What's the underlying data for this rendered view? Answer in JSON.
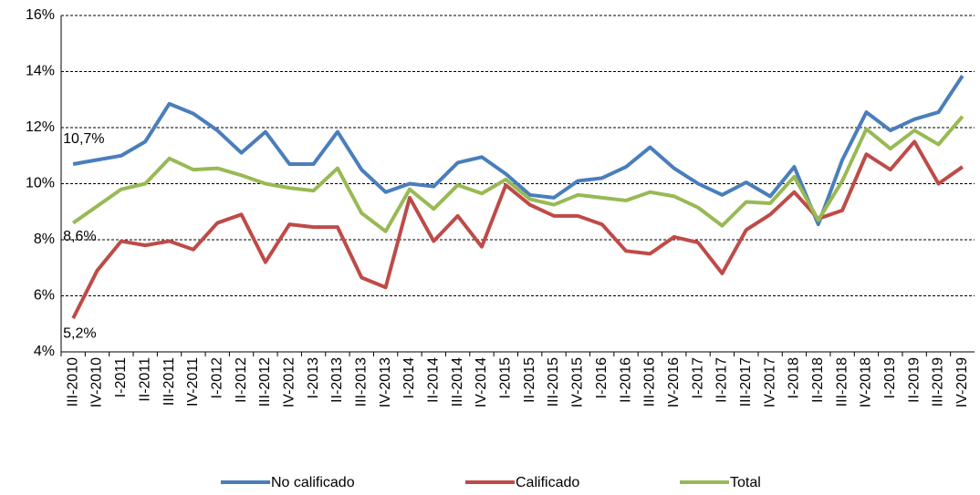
{
  "chart_data": {
    "type": "line",
    "categories": [
      "III-2010",
      "IV-2010",
      "I-2011",
      "II-2011",
      "III-2011",
      "IV-2011",
      "I-2012",
      "II-2012",
      "III-2012",
      "IV-2012",
      "I-2013",
      "II-2013",
      "III-2013",
      "IV-2013",
      "I-2014",
      "II-2014",
      "III-2014",
      "IV-2014",
      "I-2015",
      "II-2015",
      "III-2015",
      "IV-2015",
      "I-2016",
      "II-2016",
      "III-2016",
      "IV-2016",
      "I-2017",
      "II-2017",
      "III-2017",
      "IV-2017",
      "I-2018",
      "II-2018",
      "III-2018",
      "IV-2018",
      "I-2019",
      "II-2019",
      "III-2019",
      "IV-2019"
    ],
    "series": [
      {
        "name": "No calificado",
        "color": "#4a7ebb",
        "values": [
          10.7,
          10.85,
          11.0,
          11.5,
          12.85,
          12.5,
          11.9,
          11.1,
          11.85,
          10.7,
          10.7,
          11.85,
          10.5,
          9.7,
          10.0,
          9.9,
          10.75,
          10.95,
          10.35,
          9.6,
          9.5,
          10.1,
          10.2,
          10.6,
          11.3,
          10.55,
          10.0,
          9.6,
          10.05,
          9.55,
          10.6,
          8.55,
          10.85,
          12.55,
          11.9,
          12.3,
          12.55,
          13.85
        ],
        "value_labels": [
          "10,7%",
          null,
          null,
          null,
          null,
          null,
          null,
          null,
          null,
          null,
          null,
          null,
          null,
          null,
          null,
          null,
          null,
          null,
          null,
          null,
          null,
          null,
          null,
          null,
          null,
          null,
          null,
          null,
          null,
          null,
          null,
          null,
          null,
          null,
          null,
          null,
          null,
          null
        ]
      },
      {
        "name": "Calificado",
        "color": "#be4b48",
        "values": [
          5.2,
          6.9,
          7.95,
          7.8,
          7.95,
          7.65,
          8.6,
          8.9,
          7.2,
          8.55,
          8.45,
          8.45,
          6.65,
          6.3,
          9.5,
          7.95,
          8.85,
          7.75,
          9.95,
          9.25,
          8.85,
          8.85,
          8.55,
          7.6,
          7.5,
          8.1,
          7.9,
          6.8,
          8.35,
          8.9,
          9.7,
          8.75,
          9.05,
          11.05,
          10.5,
          11.5,
          10.0,
          10.6
        ],
        "value_labels": [
          "5,2%",
          null,
          null,
          null,
          null,
          null,
          null,
          null,
          null,
          null,
          null,
          null,
          null,
          null,
          null,
          null,
          null,
          null,
          null,
          null,
          null,
          null,
          null,
          null,
          null,
          null,
          null,
          null,
          null,
          null,
          null,
          null,
          null,
          null,
          null,
          null,
          null,
          null
        ]
      },
      {
        "name": "Total",
        "color": "#98b954",
        "values": [
          8.6,
          9.2,
          9.8,
          10.0,
          10.9,
          10.5,
          10.55,
          10.3,
          10.0,
          9.85,
          9.75,
          10.55,
          8.95,
          8.3,
          9.8,
          9.1,
          9.95,
          9.65,
          10.15,
          9.45,
          9.25,
          9.6,
          9.5,
          9.4,
          9.7,
          9.55,
          9.15,
          8.5,
          9.35,
          9.3,
          10.25,
          8.7,
          10.1,
          11.95,
          11.25,
          11.9,
          11.4,
          12.4
        ],
        "value_labels": [
          "8,6%",
          null,
          null,
          null,
          null,
          null,
          null,
          null,
          null,
          null,
          null,
          null,
          null,
          null,
          null,
          null,
          null,
          null,
          null,
          null,
          null,
          null,
          null,
          null,
          null,
          null,
          null,
          null,
          null,
          null,
          null,
          null,
          null,
          null,
          null,
          null,
          null,
          null
        ]
      }
    ],
    "ylim": [
      4,
      16
    ],
    "yticks": [
      {
        "value": 4,
        "label": "4%"
      },
      {
        "value": 6,
        "label": "6%"
      },
      {
        "value": 8,
        "label": "8%"
      },
      {
        "value": 10,
        "label": "10%"
      },
      {
        "value": 12,
        "label": "12%"
      },
      {
        "value": 14,
        "label": "14%"
      },
      {
        "value": 16,
        "label": "16%"
      }
    ],
    "grid": true,
    "legend": "bottom"
  }
}
